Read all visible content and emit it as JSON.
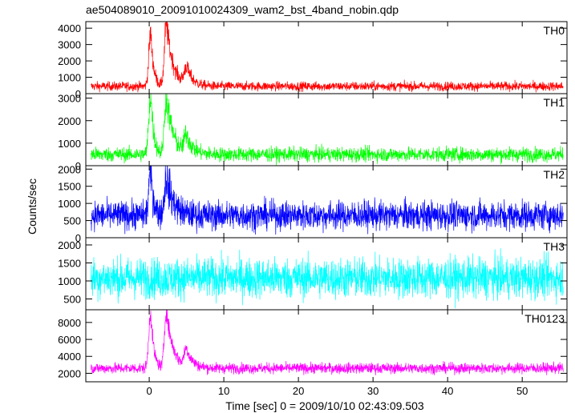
{
  "chart_data": {
    "type": "line",
    "title": "ae504089010_20091010024309_wam2_bst_4band_nobin.qdp",
    "xlabel": "Time [sec] 0 = 2009/10/10 02:43:09.503",
    "ylabel": "Counts/sec",
    "xlim": [
      -8.5,
      56
    ],
    "xticks": [
      0,
      10,
      20,
      30,
      40,
      50
    ],
    "grid": false,
    "panels": [
      {
        "name": "TH0",
        "color": "#ff0000",
        "ylim": [
          0,
          4400
        ],
        "yticks": [
          0,
          1000,
          2000,
          3000,
          4000
        ],
        "baseline": 450,
        "noise": 200,
        "peaks": [
          {
            "t": 0.2,
            "value": 3700,
            "width": 0.25,
            "decay": 0.4
          },
          {
            "t": 2.3,
            "value": 4300,
            "width": 0.25,
            "decay": 0.9
          },
          {
            "t": 5.0,
            "value": 1500,
            "width": 0.3,
            "decay": 0.8
          }
        ]
      },
      {
        "name": "TH1",
        "color": "#00ff00",
        "ylim": [
          0,
          3200
        ],
        "yticks": [
          0,
          1000,
          2000,
          3000
        ],
        "baseline": 500,
        "noise": 230,
        "peaks": [
          {
            "t": 0.2,
            "value": 3200,
            "width": 0.25,
            "decay": 0.4
          },
          {
            "t": 2.3,
            "value": 3100,
            "width": 0.25,
            "decay": 0.9
          },
          {
            "t": 5.0,
            "value": 1300,
            "width": 0.3,
            "decay": 0.8
          }
        ]
      },
      {
        "name": "TH2",
        "color": "#0000ff",
        "ylim": [
          0,
          2100
        ],
        "yticks": [
          0,
          500,
          1000,
          1500,
          2000
        ],
        "baseline": 650,
        "noise": 300,
        "peaks": [
          {
            "t": 0.2,
            "value": 2000,
            "width": 0.25,
            "decay": 0.4
          },
          {
            "t": 2.3,
            "value": 1800,
            "width": 0.25,
            "decay": 0.9
          }
        ]
      },
      {
        "name": "TH3",
        "color": "#00ffff",
        "ylim": [
          200,
          2200
        ],
        "yticks": [
          500,
          1000,
          1500,
          2000
        ],
        "baseline": 1080,
        "noise": 400,
        "peaks": []
      },
      {
        "name": "TH0123",
        "color": "#ff00ff",
        "ylim": [
          1000,
          9500
        ],
        "yticks": [
          2000,
          4000,
          6000,
          8000
        ],
        "baseline": 2600,
        "noise": 450,
        "peaks": [
          {
            "t": 0.2,
            "value": 9300,
            "width": 0.25,
            "decay": 0.4
          },
          {
            "t": 2.3,
            "value": 9400,
            "width": 0.25,
            "decay": 0.9
          },
          {
            "t": 5.0,
            "value": 4700,
            "width": 0.3,
            "decay": 0.8
          }
        ]
      }
    ]
  }
}
